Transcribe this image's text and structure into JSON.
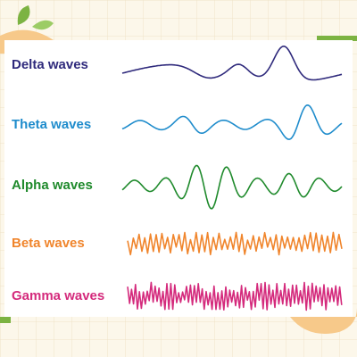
{
  "waves": [
    {
      "label": "Delta waves",
      "color": "#2f2a7c"
    },
    {
      "label": "Theta waves",
      "color": "#1f8ccc"
    },
    {
      "label": "Alpha waves",
      "color": "#1f8a2c"
    },
    {
      "label": "Beta waves",
      "color": "#f0852c"
    },
    {
      "label": "Gamma waves",
      "color": "#d42a7c"
    }
  ]
}
